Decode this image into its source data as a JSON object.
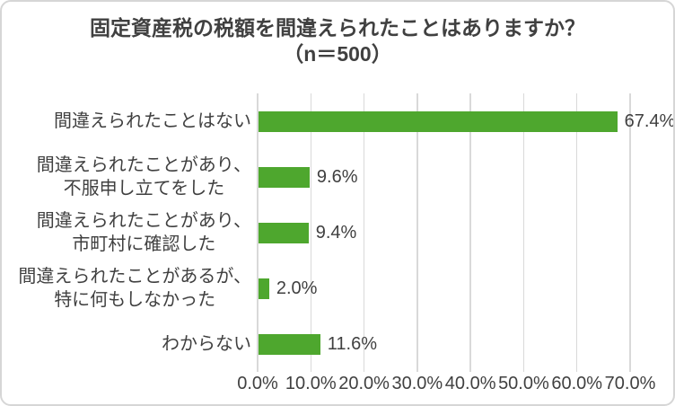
{
  "title": "固定資産税の税額を間違えられたことはありますか？",
  "subtitle": "（n＝500）",
  "colors": {
    "bar": "#4EA72E",
    "gridline": "#D9D9D9",
    "text": "#404040",
    "frame_border": "#D6D6D6",
    "background": "#FFFFFF"
  },
  "chart_data": {
    "type": "bar",
    "orientation": "horizontal",
    "title": "固定資産税の税額を間違えられたことはありますか？",
    "subtitle": "（n＝500）",
    "categories": [
      "間違えられたことはない",
      "間違えられたことがあり、\n不服申し立てをした",
      "間違えられたことがあり、\n市町村に確認した",
      "間違えられたことがあるが、\n特に何もしなかった",
      "わからない"
    ],
    "values": [
      67.4,
      9.6,
      9.4,
      2.0,
      11.6
    ],
    "value_labels": [
      "67.4%",
      "9.6%",
      "9.4%",
      "2.0%",
      "11.6%"
    ],
    "x_ticks": [
      "0.0%",
      "10.0%",
      "20.0%",
      "30.0%",
      "40.0%",
      "50.0%",
      "60.0%",
      "70.0%"
    ],
    "xlim": [
      0,
      70
    ],
    "xlabel": "",
    "ylabel": "",
    "grid": true,
    "legend": "none"
  }
}
